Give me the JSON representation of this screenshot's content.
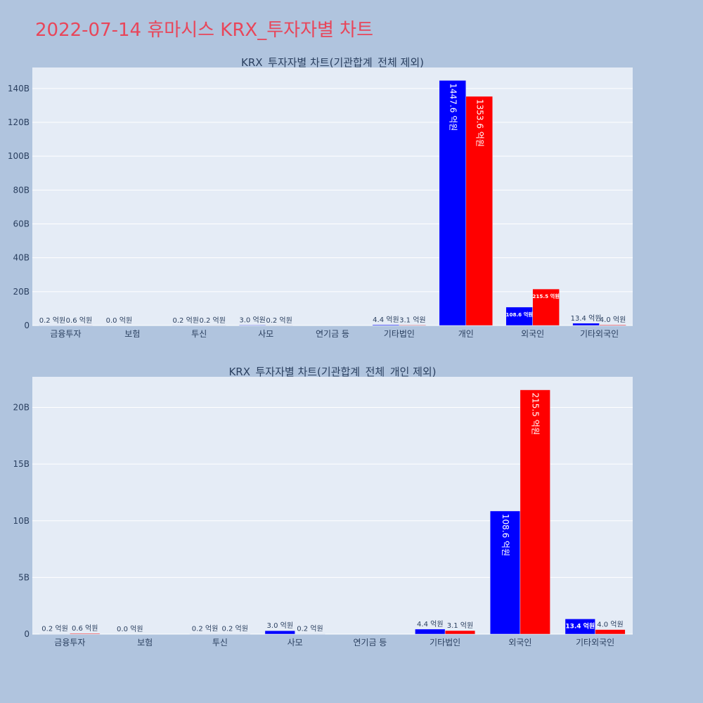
{
  "page": {
    "title": "2022-07-14 휴마시스 KRX_투자자별 차트"
  },
  "colors": {
    "background": "#b0c4de",
    "plot_bg": "#e5ecf6",
    "buy": "#0000ff",
    "sell": "#ff0000",
    "title": "#e8465a",
    "text": "#2a3f5f"
  },
  "chart_data": [
    {
      "type": "bar",
      "title": "KRX_투자자별 차트(기관합계_전체 제외)",
      "categories": [
        "금융투자",
        "보험",
        "투신",
        "사모",
        "연기금 등",
        "기타법인",
        "개인",
        "외국인",
        "기타외국인"
      ],
      "series": [
        {
          "color": "#0000ff",
          "values": [
            0.02,
            0.0,
            0.02,
            0.3,
            null,
            0.44,
            144.76,
            10.86,
            1.34
          ],
          "labels": [
            "0.2 억원",
            "0.0 억원",
            "0.2 억원",
            "3.0 억원",
            "",
            "4.4 억원",
            "1447.6 억원",
            "108.6 억원",
            "13.4 억원"
          ]
        },
        {
          "color": "#ff0000",
          "values": [
            0.06,
            null,
            0.02,
            0.02,
            null,
            0.31,
            135.36,
            21.55,
            0.4
          ],
          "labels": [
            "0.6 억원",
            "",
            "0.2 억원",
            "0.2 억원",
            "",
            "3.1 억원",
            "1353.6 억원",
            "215.5 억원",
            "4.0 억원"
          ]
        }
      ],
      "yticks": [
        0,
        20,
        40,
        60,
        80,
        100,
        120,
        140
      ],
      "ytick_labels": [
        "0",
        "20B",
        "40B",
        "60B",
        "80B",
        "100B",
        "120B",
        "140B"
      ],
      "ylim": [
        0,
        152.4
      ],
      "grid": true
    },
    {
      "type": "bar",
      "title": "KRX_투자자별 차트(기관합계_전체_개인 제외)",
      "categories": [
        "금융투자",
        "보험",
        "투신",
        "사모",
        "연기금 등",
        "기타법인",
        "외국인",
        "기타외국인"
      ],
      "series": [
        {
          "color": "#0000ff",
          "values": [
            0.02,
            0.0,
            0.02,
            0.3,
            null,
            0.44,
            10.86,
            1.34
          ],
          "labels": [
            "0.2 억원",
            "0.0 억원",
            "0.2 억원",
            "3.0 억원",
            "",
            "4.4 억원",
            "108.6 억원",
            "13.4 억원"
          ]
        },
        {
          "color": "#ff0000",
          "values": [
            0.06,
            null,
            0.02,
            0.02,
            null,
            0.31,
            21.55,
            0.4
          ],
          "labels": [
            "0.6 억원",
            "",
            "0.2 억원",
            "0.2 억원",
            "",
            "3.1 억원",
            "215.5 억원",
            "4.0 억원"
          ]
        }
      ],
      "yticks": [
        0,
        5,
        10,
        15,
        20
      ],
      "ytick_labels": [
        "0",
        "5B",
        "10B",
        "15B",
        "20B"
      ],
      "ylim": [
        0,
        22.7
      ],
      "grid": true
    }
  ]
}
